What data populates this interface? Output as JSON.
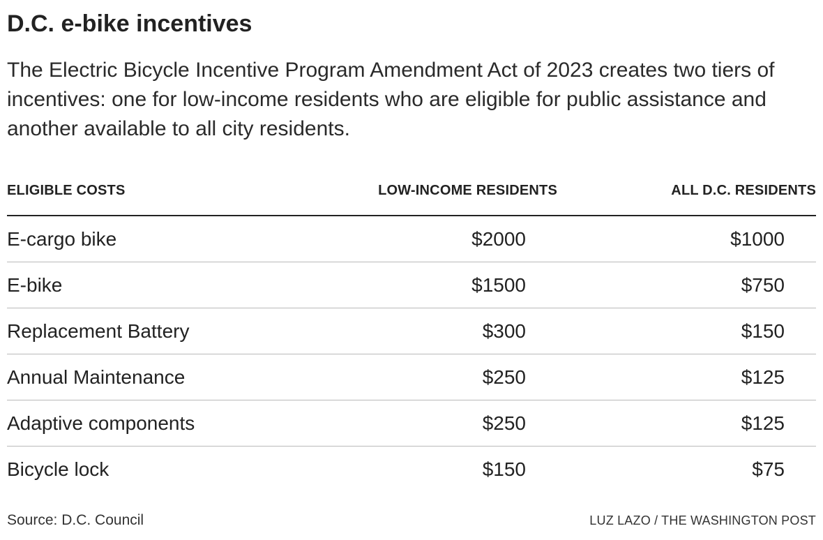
{
  "title": "D.C. e-bike incentives",
  "subtitle": "The Electric Bicycle Incentive Program Amendment Act of 2023 creates two tiers of incentives: one for low-income residents who are eligible for public assistance and another available to all city residents.",
  "source": "Source: D.C. Council",
  "credit": "LUZ LAZO / THE WASHINGTON POST",
  "chart_data": {
    "type": "table",
    "title": "D.C. e-bike incentives",
    "columns": [
      "ELIGIBLE COSTS",
      "LOW-INCOME RESIDENTS",
      "ALL D.C. RESIDENTS"
    ],
    "rows": [
      {
        "cost": "E-cargo bike",
        "low_income": "$2000",
        "all_residents": "$1000"
      },
      {
        "cost": "E-bike",
        "low_income": "$1500",
        "all_residents": "$750"
      },
      {
        "cost": "Replacement Battery",
        "low_income": "$300",
        "all_residents": "$150"
      },
      {
        "cost": "Annual Maintenance",
        "low_income": "$250",
        "all_residents": "$125"
      },
      {
        "cost": "Adaptive components",
        "low_income": "$250",
        "all_residents": "$125"
      },
      {
        "cost": "Bicycle lock",
        "low_income": "$150",
        "all_residents": "$75"
      }
    ]
  }
}
